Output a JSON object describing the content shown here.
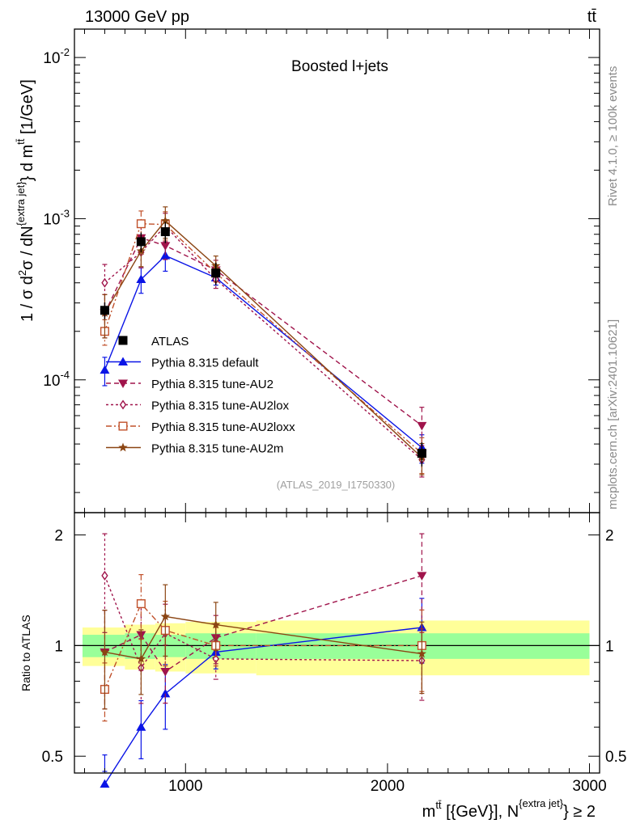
{
  "header": {
    "left_label": "13000 GeV pp",
    "right_label": "tt̄"
  },
  "side_labels": {
    "rivet": "Rivet 4.1.0, ≥ 100k events",
    "mcplots": "mcplots.cern.ch [arXiv:2401.10621]"
  },
  "chart_data": {
    "type": "line",
    "title": "Boosted l+jets",
    "analysis_tag": "(ATLAS_2019_I1750330)",
    "xlabel": "m^{tt̄} [{GeV}], N^{extra jet} ≥ 2",
    "xlabel_parts": {
      "main": "m",
      "sup1": "tt̄",
      "mid": " [{GeV}], N",
      "sup2": "{extra jet}",
      "tail": "} ≥ 2"
    },
    "ylabel": "1 / σ d²σ / dN^{extra jet}} d m^{tt̄} [1/GeV]",
    "ylabel_parts": {
      "a": "1 / σ d",
      "b": "2",
      "c": "σ / dN",
      "d": "{extra jet}",
      "e": "} d m",
      "f": "tt̄",
      "g": " [1/GeV]"
    },
    "xlim": [
      450,
      3050
    ],
    "ylim": [
      1.5e-05,
      0.015
    ],
    "yscale": "log",
    "x_ticks": [
      1000,
      2000,
      3000
    ],
    "x_tick_labels": [
      "1000",
      "2000",
      "3000"
    ],
    "y_tick_labels": [
      {
        "value": 0.01,
        "base": "10",
        "exp": "-2"
      },
      {
        "value": 0.001,
        "base": "10",
        "exp": "-3"
      },
      {
        "value": 0.0001,
        "base": "10",
        "exp": "-4"
      }
    ],
    "bins": [
      [
        490,
        700
      ],
      [
        700,
        850
      ],
      [
        850,
        1000
      ],
      [
        1000,
        1350
      ],
      [
        1350,
        3000
      ]
    ],
    "x": [
      600,
      780,
      900,
      1150,
      2170
    ],
    "data": {
      "name": "ATLAS",
      "values": [
        0.00027,
        0.00072,
        0.00083,
        0.00046,
        3.5e-05
      ],
      "rel_unc_yellow": [
        0.12,
        0.14,
        0.15,
        0.16,
        0.17
      ],
      "rel_unc_green": [
        0.07,
        0.08,
        0.07,
        0.08,
        0.08
      ]
    },
    "series": [
      {
        "name": "Pythia 8.315 default",
        "color": "#0a14e6",
        "dash": "",
        "marker": "triangle-up",
        "values": [
          0.000115,
          0.00042,
          0.00059,
          0.00043,
          3.8e-05
        ],
        "ratio": [
          0.42,
          0.6,
          0.74,
          0.96,
          1.12
        ],
        "ratio_err": [
          0.2,
          0.18,
          0.2,
          0.1,
          0.2
        ]
      },
      {
        "name": "Pythia 8.315 tune-AU2",
        "color": "#a0144b",
        "dash": "6,4",
        "marker": "triangle-down",
        "values": [
          0.00026,
          0.00076,
          0.00068,
          0.00048,
          5.2e-05
        ],
        "ratio": [
          0.96,
          1.07,
          0.85,
          1.05,
          1.55
        ],
        "ratio_err": [
          0.3,
          0.2,
          0.18,
          0.15,
          0.3
        ]
      },
      {
        "name": "Pythia 8.315 tune-AU2lox",
        "color": "#a0144b",
        "dash": "3,3",
        "marker": "diamond-open",
        "values": [
          0.0004,
          0.00062,
          0.0009,
          0.00042,
          3.2e-05
        ],
        "ratio": [
          1.55,
          0.87,
          1.08,
          0.92,
          0.91
        ],
        "ratio_err": [
          0.3,
          0.2,
          0.2,
          0.12,
          0.22
        ]
      },
      {
        "name": "Pythia 8.315 tune-AU2loxx",
        "color": "#c0502a",
        "dash": "7,3,2,3",
        "marker": "square-open",
        "values": [
          0.0002,
          0.00093,
          0.00092,
          0.00046,
          3.5e-05
        ],
        "ratio": [
          0.76,
          1.3,
          1.1,
          1.0,
          1.0
        ],
        "ratio_err": [
          0.18,
          0.2,
          0.2,
          0.12,
          0.25
        ]
      },
      {
        "name": "Pythia 8.315 tune-AU2m",
        "color": "#8b4513",
        "dash": "",
        "marker": "star",
        "values": [
          0.00026,
          0.00063,
          0.00097,
          0.00051,
          3.3e-05
        ],
        "ratio": [
          0.96,
          0.92,
          1.2,
          1.14,
          0.95
        ],
        "ratio_err": [
          0.3,
          0.2,
          0.22,
          0.15,
          0.22
        ]
      }
    ],
    "ratio_panel": {
      "ylabel": "Ratio to ATLAS",
      "ylim": [
        0.45,
        2.3
      ],
      "y_ticks": [
        0.5,
        1,
        2
      ],
      "y_tick_labels": [
        "0.5",
        "1",
        "2"
      ]
    }
  }
}
